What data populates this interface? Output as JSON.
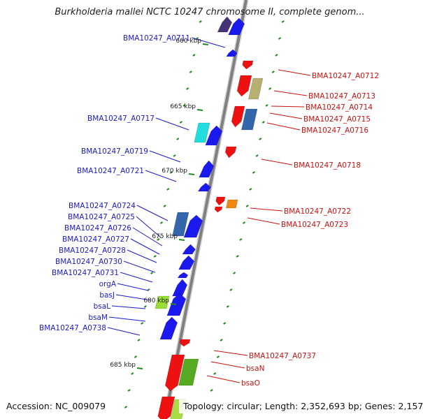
{
  "header": {
    "title": "Burkholderia mallei NCTC 10247 chromosome II, complete genom..."
  },
  "footer": {
    "accession": "Accession: NC_009079",
    "topology": "Topology: circular; Length: 2,352,693 bp; Genes: 2,157"
  },
  "colors": {
    "forward_gene": "#1a1aee",
    "reverse_gene": "#ee1111",
    "forward_label": "#1a1acc",
    "reverse_label": "#cc1111",
    "backbone": "#808080",
    "tick": "#228822"
  },
  "scale_labels": [
    "660 kbp",
    "665 kbp",
    "670 kbp",
    "675 kbp",
    "680 kbp",
    "685 kbp"
  ],
  "genes_left": [
    "BMA10247_A0711",
    "BMA10247_A0717",
    "BMA10247_A0719",
    "BMA10247_A0721",
    "BMA10247_A0724",
    "BMA10247_A0725",
    "BMA10247_A0726",
    "BMA10247_A0727",
    "BMA10247_A0728",
    "BMA10247_A0730",
    "BMA10247_A0731",
    "orgA",
    "basJ",
    "bsaL",
    "bsaM",
    "BMA10247_A0738"
  ],
  "genes_right": [
    "BMA10247_A0712",
    "BMA10247_A0713",
    "BMA10247_A0714",
    "BMA10247_A0715",
    "BMA10247_A0716",
    "BMA10247_A0718",
    "BMA10247_A0722",
    "BMA10247_A0723",
    "BMA10247_A0737",
    "bsaN",
    "bsaO"
  ]
}
